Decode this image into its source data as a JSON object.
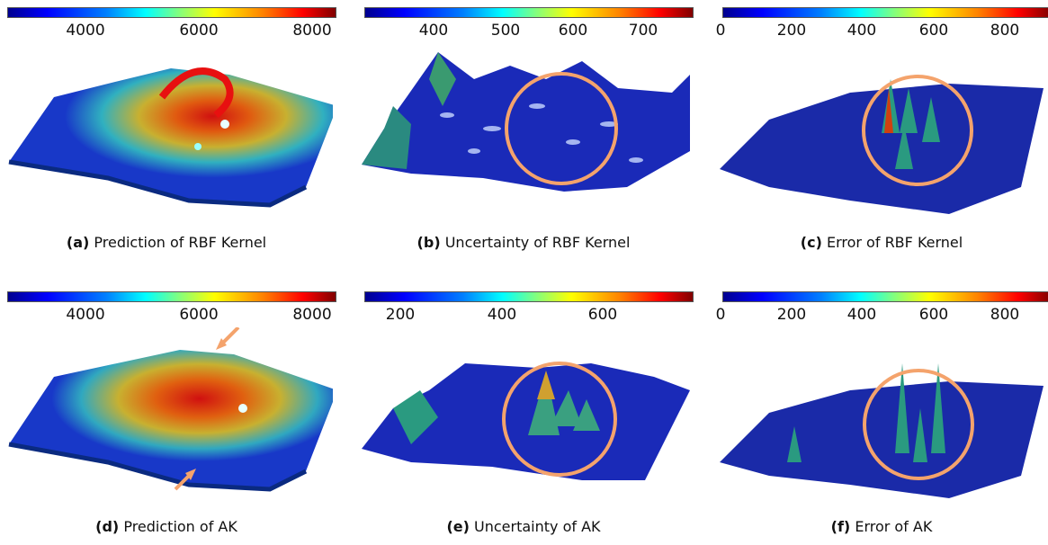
{
  "panels": [
    {
      "label": "(a)",
      "text": "Prediction of RBF Kernel",
      "ticks": [
        "4000",
        "6000",
        "8000"
      ]
    },
    {
      "label": "(b)",
      "text": "Uncertainty of RBF Kernel",
      "ticks": [
        "400",
        "500",
        "600",
        "700"
      ]
    },
    {
      "label": "(c)",
      "text": "Error of RBF Kernel",
      "ticks": [
        "0",
        "200",
        "400",
        "600",
        "800"
      ]
    },
    {
      "label": "(d)",
      "text": "Prediction of AK",
      "ticks": [
        "4000",
        "6000",
        "8000"
      ]
    },
    {
      "label": "(e)",
      "text": "Uncertainty of AK",
      "ticks": [
        "200",
        "400",
        "600"
      ]
    },
    {
      "label": "(f)",
      "text": "Error of AK",
      "ticks": [
        "0",
        "200",
        "400",
        "600",
        "800"
      ]
    }
  ],
  "colors": {
    "highlight": "#f4a36c",
    "low": "#0a1a9a",
    "high": "#c81e10"
  }
}
